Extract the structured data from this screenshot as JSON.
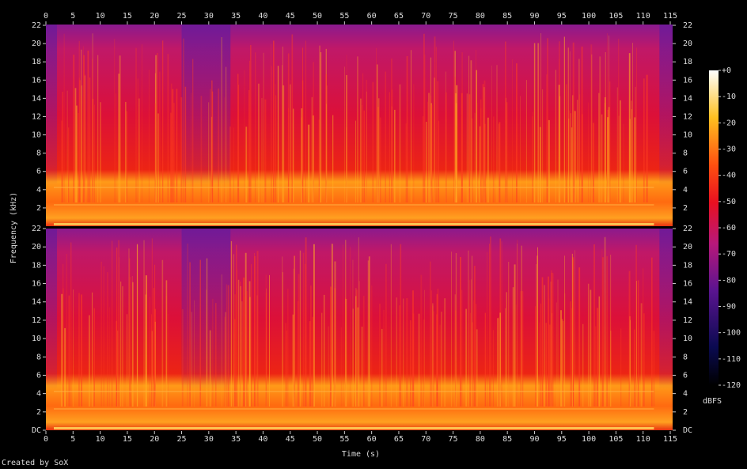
{
  "chart_data": {
    "type": "spectrogram",
    "x_label": "Time (s)",
    "y_label": "Frequency (kHz)",
    "xlim": [
      0,
      115
    ],
    "xticks": [
      0,
      5,
      10,
      15,
      20,
      25,
      30,
      35,
      40,
      45,
      50,
      55,
      60,
      65,
      70,
      75,
      80,
      85,
      90,
      95,
      100,
      105,
      110,
      115
    ],
    "channels": [
      {
        "ylim": [
          0,
          22
        ],
        "yticks": [
          2,
          4,
          6,
          8,
          10,
          12,
          14,
          16,
          18,
          20,
          22
        ]
      },
      {
        "ylim": [
          0,
          22
        ],
        "yticks": [
          {
            "value": 0,
            "label": "DC"
          },
          2,
          4,
          6,
          8,
          10,
          12,
          14,
          16,
          18,
          20,
          22
        ]
      }
    ],
    "colorbar": {
      "label": "dBFS",
      "lim": [
        -120,
        0
      ],
      "ticks": [
        {
          "value": 0,
          "label": "+0"
        },
        -10,
        -20,
        -30,
        -40,
        -50,
        -60,
        -70,
        -80,
        -90,
        -100,
        -110,
        -120
      ]
    },
    "credit": "Created by SoX"
  }
}
